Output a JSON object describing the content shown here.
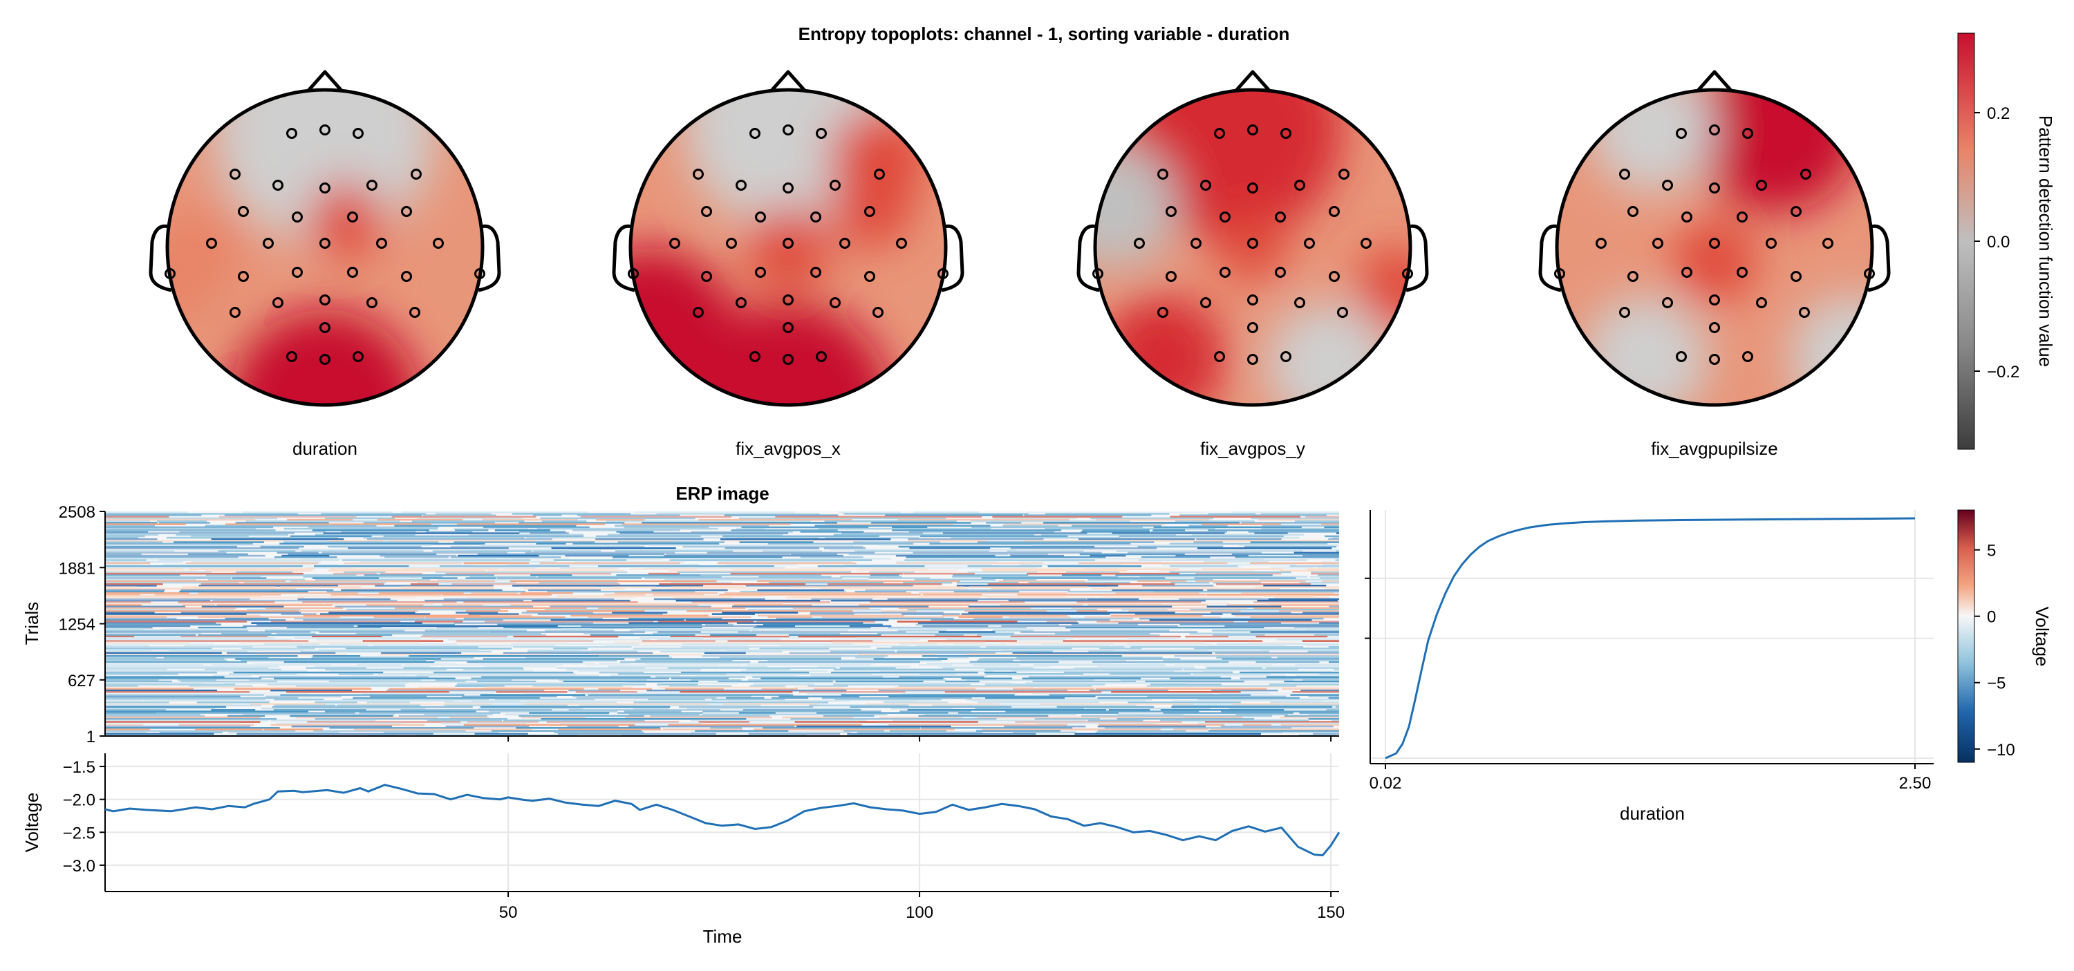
{
  "title": "Entropy topoplots: channel - 1, sorting variable - duration",
  "colors": {
    "topo_positive": "#c8102e",
    "topo_mid": "#e8967a",
    "topo_neutral": "#bfbfbf",
    "erp_line": "#1f6fb5",
    "grid": "#e6e6e6"
  },
  "topoplots": [
    {
      "label": "duration"
    },
    {
      "label": "fix_avgpos_x"
    },
    {
      "label": "fix_avgpos_y"
    },
    {
      "label": "fix_avgpupilsize"
    }
  ],
  "topo_colorbar": {
    "label": "Pattern detection function value",
    "colormap": "grays-to-reds (diverging)",
    "range": [
      -0.32,
      0.32
    ],
    "ticks": [
      "0.2",
      "0.0",
      "−0.2"
    ]
  },
  "erp_colorbar": {
    "label": "Voltage",
    "colormap": "RdBu reversed",
    "range": [
      -11,
      8
    ],
    "ticks": [
      "5",
      "0",
      "−5",
      "−10"
    ]
  },
  "chart_data": [
    {
      "type": "heatmap",
      "title": "ERP image",
      "ylabel": "Trials",
      "yticks": [
        "2508",
        "1881",
        "1254",
        "627",
        "1"
      ],
      "ylim": [
        1,
        2508
      ],
      "xlim": [
        1,
        151
      ],
      "colorbar_label": "Voltage"
    },
    {
      "type": "line",
      "title": "",
      "xlabel": "Time",
      "ylabel": "Voltage",
      "xticks": [
        "50",
        "100",
        "150"
      ],
      "yticks": [
        "−1.5",
        "−2.0",
        "−2.5",
        "−3.0"
      ],
      "xlim": [
        1,
        151
      ],
      "ylim": [
        -3.4,
        -1.3
      ],
      "x": [
        1,
        2,
        4,
        6,
        9,
        12,
        14,
        16,
        18,
        19,
        21,
        22,
        24,
        25,
        28,
        30,
        32,
        33,
        35,
        37,
        39,
        41,
        43,
        45,
        47,
        49,
        50,
        52,
        53,
        55,
        57,
        59,
        61,
        63,
        65,
        66,
        68,
        70,
        72,
        74,
        76,
        78,
        80,
        82,
        84,
        86,
        88,
        90,
        92,
        94,
        96,
        98,
        100,
        102,
        104,
        106,
        108,
        110,
        112,
        114,
        116,
        118,
        120,
        122,
        124,
        126,
        128,
        130,
        132,
        134,
        136,
        138,
        140,
        142,
        144,
        146,
        148,
        149,
        150,
        151
      ],
      "y": [
        -2.15,
        -2.18,
        -2.14,
        -2.16,
        -2.18,
        -2.12,
        -2.15,
        -2.1,
        -2.12,
        -2.07,
        -2.0,
        -1.88,
        -1.87,
        -1.89,
        -1.86,
        -1.9,
        -1.83,
        -1.88,
        -1.78,
        -1.84,
        -1.91,
        -1.92,
        -2.0,
        -1.93,
        -1.98,
        -2.0,
        -1.97,
        -2.01,
        -2.02,
        -1.99,
        -2.05,
        -2.08,
        -2.1,
        -2.02,
        -2.07,
        -2.16,
        -2.08,
        -2.16,
        -2.26,
        -2.36,
        -2.4,
        -2.38,
        -2.45,
        -2.42,
        -2.32,
        -2.18,
        -2.13,
        -2.1,
        -2.06,
        -2.12,
        -2.15,
        -2.17,
        -2.22,
        -2.19,
        -2.08,
        -2.16,
        -2.12,
        -2.07,
        -2.1,
        -2.15,
        -2.26,
        -2.3,
        -2.4,
        -2.36,
        -2.42,
        -2.5,
        -2.48,
        -2.54,
        -2.62,
        -2.56,
        -2.62,
        -2.48,
        -2.41,
        -2.49,
        -2.43,
        -2.72,
        -2.84,
        -2.85,
        -2.7,
        -2.5
      ]
    },
    {
      "type": "line",
      "title": "",
      "xlabel": "duration",
      "xticks": [
        "0.02",
        "2.50"
      ],
      "xlim": [
        0.02,
        2.5
      ],
      "ylim": [
        1,
        2508
      ],
      "x": [
        0.02,
        0.07,
        0.1,
        0.13,
        0.16,
        0.19,
        0.22,
        0.26,
        0.3,
        0.34,
        0.38,
        0.42,
        0.46,
        0.5,
        0.55,
        0.6,
        0.65,
        0.7,
        0.78,
        0.86,
        0.95,
        1.05,
        1.2,
        1.4,
        1.7,
        2.0,
        2.25,
        2.5
      ],
      "y": [
        1,
        50,
        150,
        330,
        620,
        930,
        1230,
        1500,
        1720,
        1900,
        2030,
        2130,
        2210,
        2270,
        2320,
        2360,
        2390,
        2415,
        2440,
        2455,
        2468,
        2476,
        2484,
        2490,
        2495,
        2500,
        2504,
        2508
      ]
    }
  ]
}
